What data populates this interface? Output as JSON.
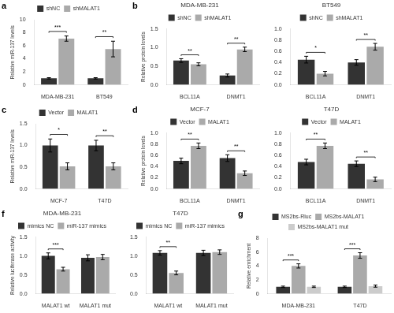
{
  "chart_data": [
    {
      "type": "bar",
      "categories": [
        "MDA-MB-231",
        "BT549"
      ],
      "series": [
        {
          "name": "shNC",
          "color": "#333333",
          "values": [
            1.0,
            1.0
          ],
          "errors": [
            0.1,
            0.1
          ]
        },
        {
          "name": "shMALAT1",
          "color": "#aaaaaa",
          "values": [
            7.1,
            5.5
          ],
          "errors": [
            0.4,
            1.2
          ]
        }
      ],
      "y_label": "Relative miR-137 levels",
      "ylim": [
        0,
        10
      ],
      "yticks": [
        0,
        2,
        4,
        6,
        8,
        10
      ],
      "grid": false,
      "legend": "top",
      "annotations": [
        {
          "text": "a"
        },
        {
          "text": "***",
          "category": "MDA-MB-231",
          "between": [
            "shNC",
            "shMALAT1"
          ]
        },
        {
          "text": "**",
          "category": "BT549",
          "between": [
            "shNC",
            "shMALAT1"
          ]
        }
      ]
    },
    {
      "type": "bar",
      "title": "MDA-MB-231",
      "categories": [
        "BCL11A",
        "DNMT1"
      ],
      "series": [
        {
          "name": "shNC",
          "color": "#333333",
          "values": [
            0.65,
            0.25
          ],
          "errors": [
            0.05,
            0.04
          ]
        },
        {
          "name": "shMALAT1",
          "color": "#aaaaaa",
          "values": [
            0.55,
            0.95
          ],
          "errors": [
            0.04,
            0.06
          ]
        }
      ],
      "y_label": "Relative protein levels",
      "ylim": [
        0,
        1.5
      ],
      "yticks": [
        {
          "value": 0,
          "label": "0.0"
        },
        0.5,
        {
          "value": 1,
          "label": "1.0"
        },
        1.5
      ],
      "grid": false,
      "legend": "top",
      "annotations": [
        {
          "text": "b"
        },
        {
          "text": "**",
          "category": "BCL11A",
          "between": [
            "shNC",
            "shMALAT1"
          ]
        },
        {
          "text": "**",
          "category": "DNMT1",
          "between": [
            "shNC",
            "shMALAT1"
          ]
        }
      ]
    },
    {
      "type": "bar",
      "title": "BT549",
      "categories": [
        "BCL11A",
        "DNMT1"
      ],
      "series": [
        {
          "name": "shNC",
          "color": "#333333",
          "values": [
            0.45,
            0.4
          ],
          "errors": [
            0.06,
            0.05
          ]
        },
        {
          "name": "shMALAT1",
          "color": "#aaaaaa",
          "values": [
            0.2,
            0.68
          ],
          "errors": [
            0.04,
            0.06
          ]
        }
      ],
      "ylim": [
        0,
        1.0
      ],
      "yticks": [
        {
          "value": 0,
          "label": "0.0"
        },
        0.2,
        0.4,
        0.6,
        0.8,
        {
          "value": 1,
          "label": "1.0"
        }
      ],
      "grid": false,
      "legend": "top",
      "annotations": [
        {
          "text": "*",
          "category": "BCL11A",
          "between": [
            "shNC",
            "shMALAT1"
          ]
        },
        {
          "text": "**",
          "category": "DNMT1",
          "between": [
            "shNC",
            "shMALAT1"
          ]
        }
      ]
    },
    {
      "type": "bar",
      "categories": [
        "MCF-7",
        "T47D"
      ],
      "series": [
        {
          "name": "Vector",
          "color": "#333333",
          "values": [
            1.0,
            1.0
          ],
          "errors": [
            0.15,
            0.12
          ]
        },
        {
          "name": "MALAT1",
          "color": "#aaaaaa",
          "values": [
            0.52,
            0.52
          ],
          "errors": [
            0.08,
            0.08
          ]
        }
      ],
      "y_label": "Relative miR-137 levels",
      "ylim": [
        0,
        1.5
      ],
      "yticks": [
        {
          "value": 0,
          "label": "0.0"
        },
        0.5,
        {
          "value": 1,
          "label": "1.0"
        },
        1.5
      ],
      "grid": false,
      "legend": "top",
      "annotations": [
        {
          "text": "c"
        },
        {
          "text": "*",
          "category": "MCF-7",
          "between": [
            "Vector",
            "MALAT1"
          ]
        },
        {
          "text": "**",
          "category": "T47D",
          "between": [
            "Vector",
            "MALAT1"
          ]
        }
      ]
    },
    {
      "type": "bar",
      "title": "MCF-7",
      "categories": [
        "BCL11A",
        "DNMT1"
      ],
      "series": [
        {
          "name": "Vector",
          "color": "#333333",
          "values": [
            0.5,
            0.55
          ],
          "errors": [
            0.05,
            0.06
          ]
        },
        {
          "name": "MALAT1",
          "color": "#aaaaaa",
          "values": [
            0.77,
            0.28
          ],
          "errors": [
            0.05,
            0.04
          ]
        }
      ],
      "y_label": "Relative protein levels",
      "ylim": [
        0,
        1.0
      ],
      "yticks": [
        {
          "value": 0,
          "label": "0.0"
        },
        0.2,
        0.4,
        0.6,
        0.8,
        {
          "value": 1,
          "label": "1.0"
        }
      ],
      "grid": false,
      "legend": "top",
      "annotations": [
        {
          "text": "d"
        },
        {
          "text": "**",
          "category": "BCL11A",
          "between": [
            "Vector",
            "MALAT1"
          ]
        },
        {
          "text": "**",
          "category": "DNMT1",
          "between": [
            "Vector",
            "MALAT1"
          ]
        }
      ]
    },
    {
      "type": "bar",
      "title": "T47D",
      "categories": [
        "BCL11A",
        "DNMT1"
      ],
      "series": [
        {
          "name": "Vector",
          "color": "#333333",
          "values": [
            0.48,
            0.45
          ],
          "errors": [
            0.05,
            0.05
          ]
        },
        {
          "name": "MALAT1",
          "color": "#aaaaaa",
          "values": [
            0.77,
            0.17
          ],
          "errors": [
            0.05,
            0.04
          ]
        }
      ],
      "ylim": [
        0,
        1.0
      ],
      "yticks": [
        {
          "value": 0,
          "label": "0.0"
        },
        0.2,
        0.4,
        0.6,
        0.8,
        {
          "value": 1,
          "label": "1.0"
        }
      ],
      "grid": false,
      "legend": "top",
      "annotations": [
        {
          "text": "**",
          "category": "BCL11A",
          "between": [
            "Vector",
            "MALAT1"
          ]
        },
        {
          "text": "**",
          "category": "DNMT1",
          "between": [
            "Vector",
            "MALAT1"
          ]
        }
      ]
    },
    {
      "type": "bar",
      "title": "MDA-MB-231",
      "categories": [
        "MALAT1 wt",
        "MALAT1 mut"
      ],
      "series": [
        {
          "name": "mimics NC",
          "color": "#333333",
          "values": [
            1.0,
            0.95
          ],
          "errors": [
            0.08,
            0.08
          ]
        },
        {
          "name": "miR-137 mimics",
          "color": "#aaaaaa",
          "values": [
            0.65,
            0.97
          ],
          "errors": [
            0.05,
            0.07
          ]
        }
      ],
      "y_label": "Relative luciferase activity",
      "ylim": [
        0,
        1.5
      ],
      "yticks": [
        {
          "value": 0,
          "label": "0.0"
        },
        0.5,
        {
          "value": 1,
          "label": "1.0"
        },
        1.5
      ],
      "grid": false,
      "legend": "top",
      "annotations": [
        {
          "text": "f"
        },
        {
          "text": "***",
          "category": "MALAT1 wt",
          "between": [
            "mimics NC",
            "miR-137 mimics"
          ]
        }
      ]
    },
    {
      "type": "bar",
      "title": "T47D",
      "categories": [
        "MALAT1 wt",
        "MALAT1 mut"
      ],
      "series": [
        {
          "name": "mimics NC",
          "color": "#333333",
          "values": [
            1.08,
            1.08
          ],
          "errors": [
            0.06,
            0.07
          ]
        },
        {
          "name": "miR-137 mimics",
          "color": "#aaaaaa",
          "values": [
            0.55,
            1.1
          ],
          "errors": [
            0.05,
            0.06
          ]
        }
      ],
      "ylim": [
        0,
        1.5
      ],
      "yticks": [
        {
          "value": 0,
          "label": "0.0"
        },
        0.5,
        {
          "value": 1,
          "label": "1.0"
        },
        1.5
      ],
      "grid": false,
      "legend": "top",
      "annotations": [
        {
          "text": "**",
          "category": "MALAT1 wt",
          "between": [
            "mimics NC",
            "miR-137 mimics"
          ]
        }
      ]
    },
    {
      "type": "bar",
      "categories": [
        "MDA-MB-231",
        "T47D"
      ],
      "series": [
        {
          "name": "MS2bs-Rluc",
          "color": "#333333",
          "values": [
            1.0,
            1.0
          ],
          "errors": [
            0.1,
            0.1
          ]
        },
        {
          "name": "MS2bs-MALAT1",
          "color": "#aaaaaa",
          "values": [
            4.0,
            5.5
          ],
          "errors": [
            0.3,
            0.4
          ]
        },
        {
          "name": "MS2bs-MALAT1 mut",
          "color": "#cccccc",
          "values": [
            1.0,
            1.1
          ],
          "errors": [
            0.1,
            0.15
          ]
        }
      ],
      "y_label": "Relative enrichment",
      "ylim": [
        0,
        8
      ],
      "yticks": [
        0,
        2,
        4,
        6,
        8
      ],
      "grid": false,
      "legend": "top",
      "annotations": [
        {
          "text": "g"
        },
        {
          "text": "***",
          "category": "MDA-MB-231",
          "between": [
            "MS2bs-Rluc",
            "MS2bs-MALAT1"
          ]
        },
        {
          "text": "***",
          "category": "T47D",
          "between": [
            "MS2bs-Rluc",
            "MS2bs-MALAT1"
          ]
        }
      ]
    }
  ]
}
